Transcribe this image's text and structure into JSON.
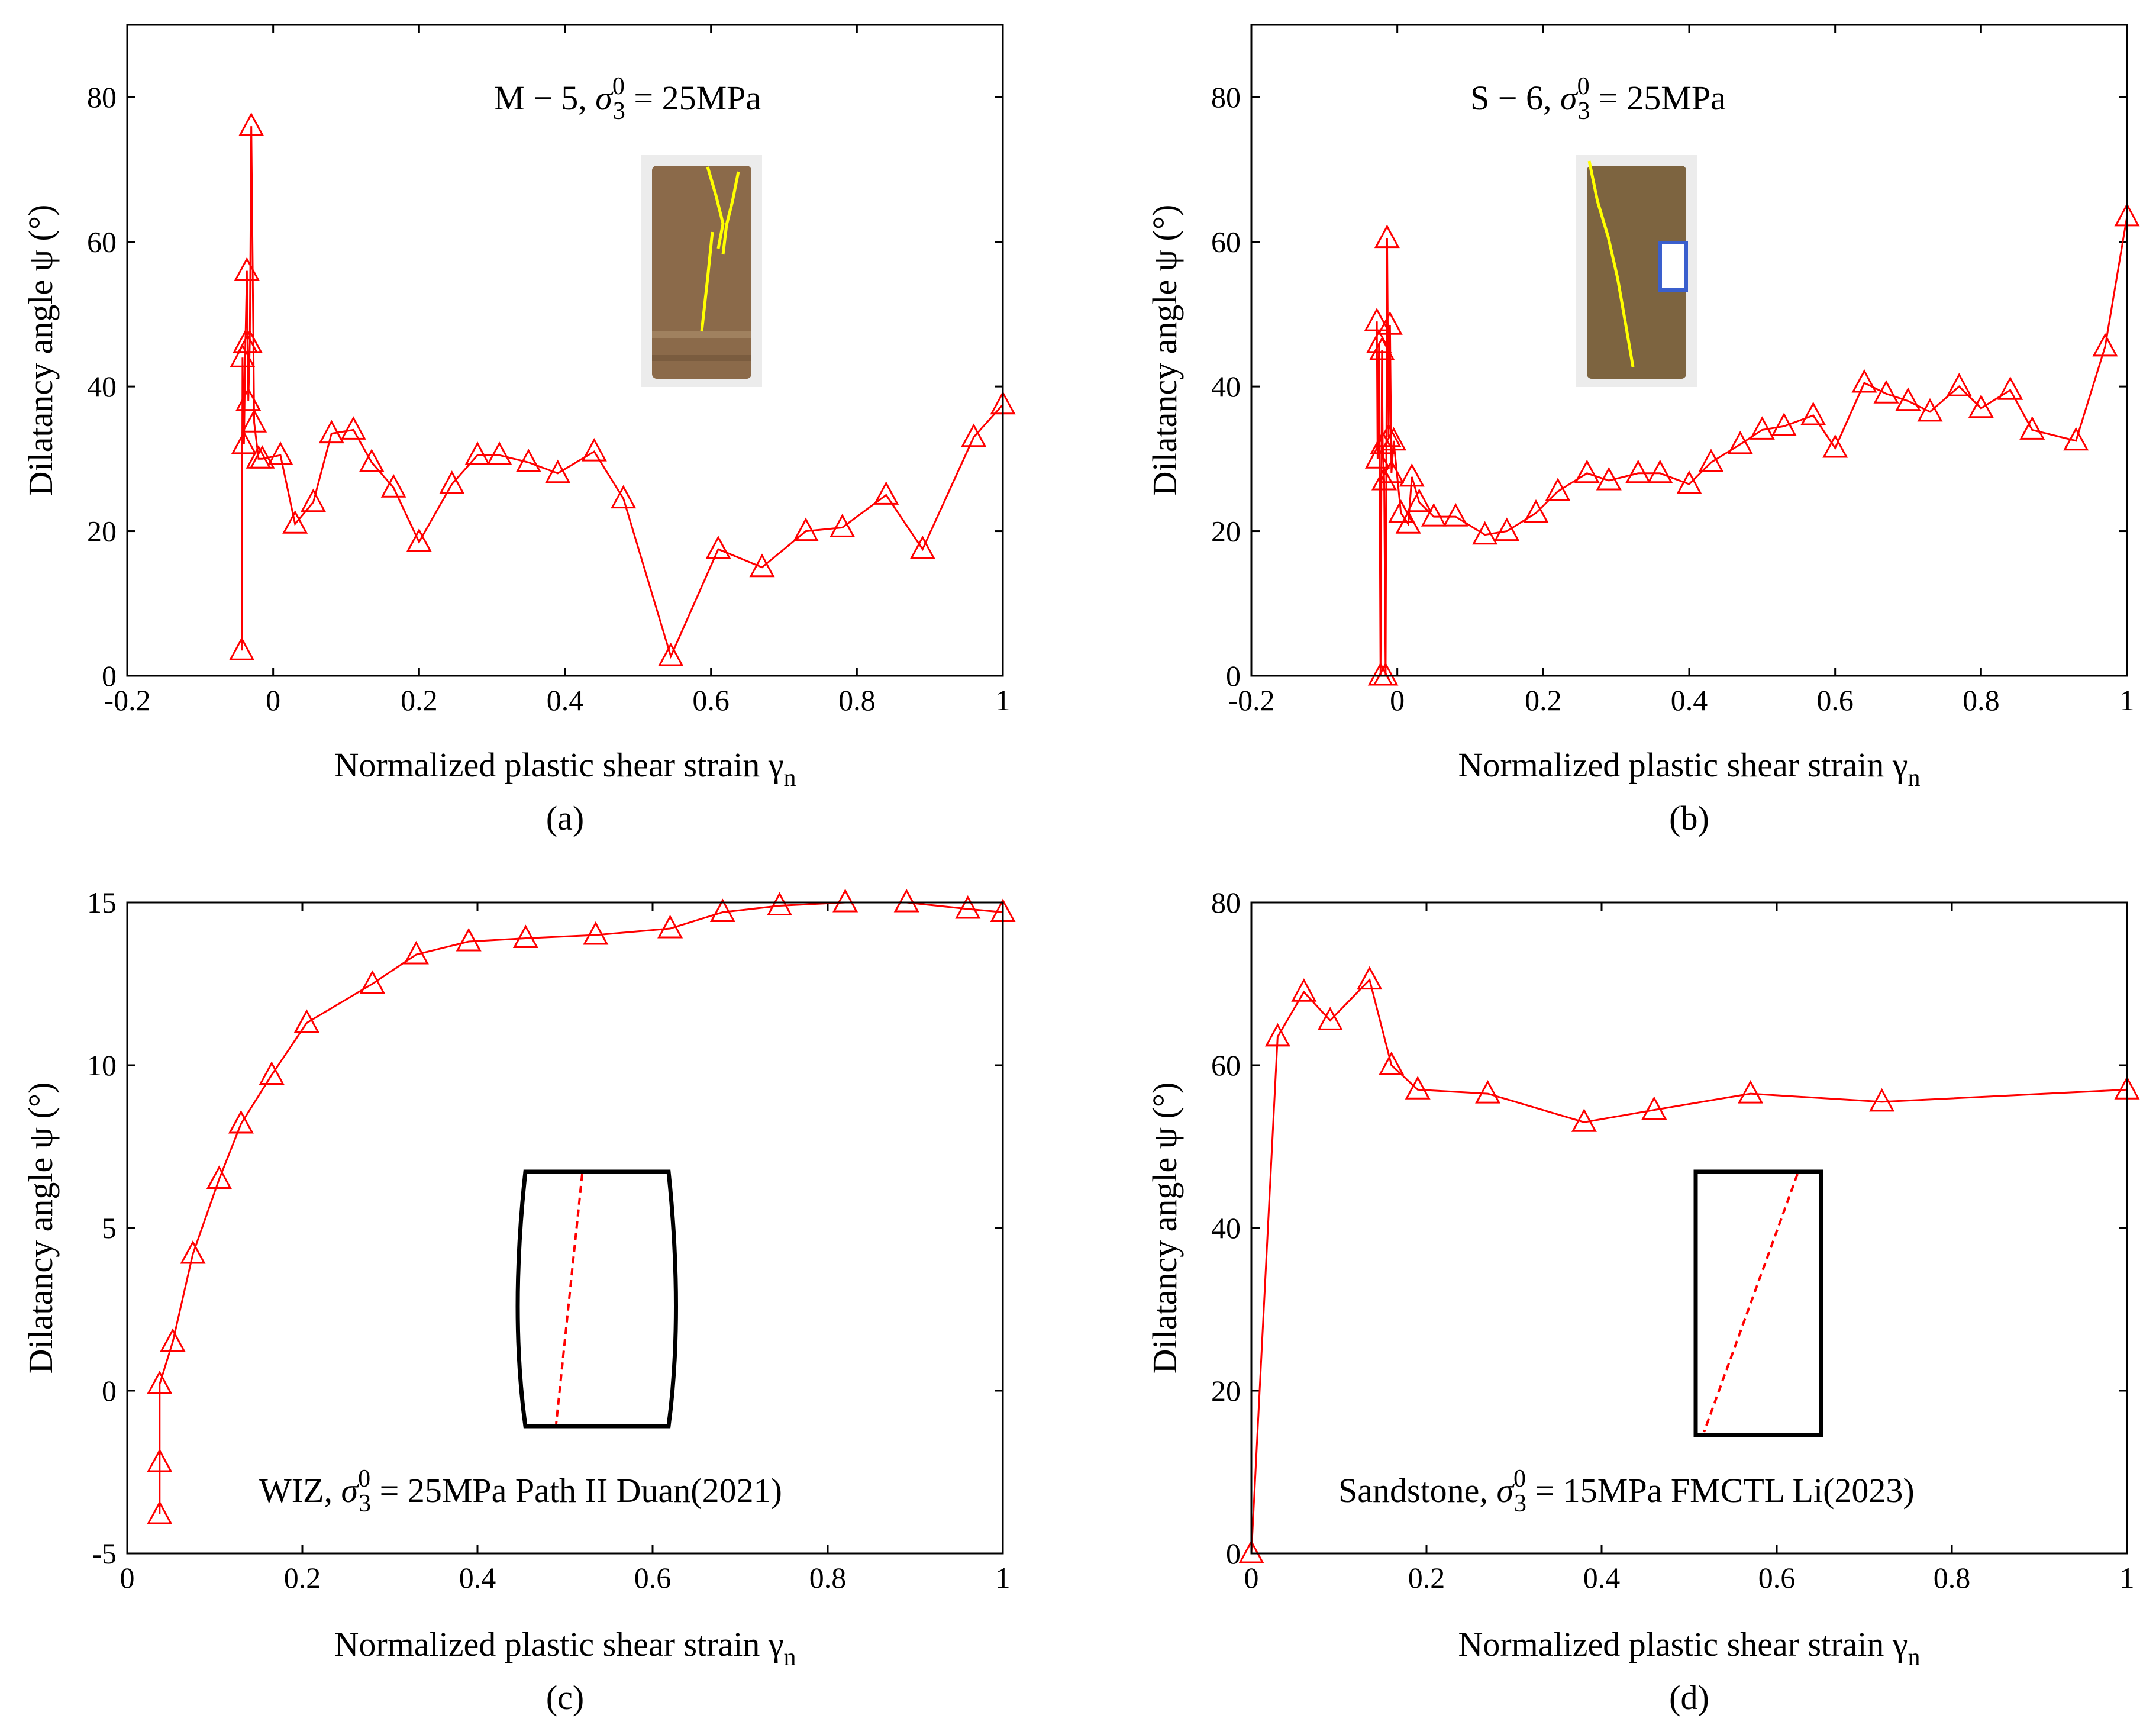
{
  "figure": {
    "colors": {
      "series": "#ff0000",
      "axes": "#000000",
      "crack": "#ffff00",
      "specimen": "#8b6a4a"
    }
  },
  "chart_data": [
    {
      "id": "a",
      "type": "line",
      "caption": "(a)",
      "annotation": "M − 5, σ₃⁰ = 25MPa",
      "annotation_parts": {
        "prefix": "M − 5, ",
        "symbol": "σ",
        "sup": "0",
        "sub": "3",
        "suffix": " = 25MPa"
      },
      "xlabel": "Normalized plastic shear strain γ",
      "xlabel_sub": "n",
      "ylabel": "Dilatancy angle ψ (°)",
      "xlim": [
        -0.2,
        1
      ],
      "ylim": [
        0,
        90
      ],
      "xticks": [
        -0.2,
        0,
        0.2,
        0.4,
        0.6,
        0.8,
        1
      ],
      "xtick_labels": [
        "-0.2",
        "0",
        "0.2",
        "0.4",
        "0.6",
        "0.8",
        "1"
      ],
      "yticks": [
        0,
        20,
        40,
        60,
        80
      ],
      "ytick_labels": [
        "0",
        "20",
        "40",
        "60",
        "80"
      ],
      "inset": "specimen-photo-m5",
      "x": [
        -0.043,
        -0.042,
        -0.04,
        -0.038,
        -0.036,
        -0.034,
        -0.032,
        -0.03,
        -0.026,
        -0.02,
        -0.015,
        0.01,
        0.03,
        0.055,
        0.08,
        0.11,
        0.135,
        0.165,
        0.2,
        0.245,
        0.28,
        0.31,
        0.35,
        0.39,
        0.44,
        0.48,
        0.545,
        0.61,
        0.67,
        0.73,
        0.78,
        0.84,
        0.89,
        0.96,
        1.0
      ],
      "y": [
        3.5,
        44,
        32,
        46,
        56,
        38,
        46,
        76,
        35,
        30,
        30,
        30.5,
        21,
        24,
        33.5,
        34,
        29.5,
        26,
        18.5,
        26.5,
        30.5,
        30.5,
        29.5,
        28,
        31,
        24.5,
        2.7,
        17.5,
        15,
        20,
        20.5,
        25,
        17.5,
        33,
        37.5
      ]
    },
    {
      "id": "b",
      "type": "line",
      "caption": "(b)",
      "annotation": "S − 6, σ₃⁰ = 25MPa",
      "annotation_parts": {
        "prefix": "S − 6, ",
        "symbol": "σ",
        "sup": "0",
        "sub": "3",
        "suffix": " = 25MPa"
      },
      "xlabel": "Normalized plastic shear strain γ",
      "xlabel_sub": "n",
      "ylabel": "Dilatancy angle ψ (°)",
      "xlim": [
        -0.2,
        1
      ],
      "ylim": [
        0,
        90
      ],
      "xticks": [
        -0.2,
        0,
        0.2,
        0.4,
        0.6,
        0.8,
        1
      ],
      "xtick_labels": [
        "-0.2",
        "0",
        "0.2",
        "0.4",
        "0.6",
        "0.8",
        "1"
      ],
      "yticks": [
        0,
        20,
        40,
        60,
        80
      ],
      "ytick_labels": [
        "0",
        "20",
        "40",
        "60",
        "80"
      ],
      "inset": "specimen-photo-s6",
      "x": [
        -0.028,
        -0.027,
        -0.025,
        -0.023,
        -0.021,
        -0.02,
        -0.018,
        -0.016,
        -0.014,
        -0.012,
        -0.01,
        -0.008,
        -0.005,
        0.005,
        0.015,
        0.02,
        0.03,
        0.05,
        0.08,
        0.12,
        0.15,
        0.19,
        0.22,
        0.26,
        0.29,
        0.33,
        0.36,
        0.4,
        0.43,
        0.47,
        0.5,
        0.53,
        0.57,
        0.6,
        0.64,
        0.67,
        0.7,
        0.73,
        0.77,
        0.8,
        0.84,
        0.87,
        0.93,
        0.97,
        1.0
      ],
      "y": [
        49,
        30,
        46,
        0,
        45,
        32,
        27,
        0,
        60.5,
        33,
        48.5,
        28,
        32.5,
        22.5,
        21,
        27.5,
        24,
        22,
        22,
        19.5,
        20,
        22.5,
        25.5,
        28,
        27,
        28,
        28,
        26.5,
        29.5,
        32,
        34,
        34.5,
        36,
        31.5,
        40.5,
        39,
        38,
        36.5,
        40,
        37,
        39.5,
        34,
        32.5,
        45.5,
        63.5
      ]
    },
    {
      "id": "c",
      "type": "line",
      "caption": "(c)",
      "annotation": "WIZ, σ₃⁰ = 25MPa Path II Duan(2021)",
      "annotation_parts": {
        "prefix": "WIZ, ",
        "symbol": "σ",
        "sup": "0",
        "sub": "3",
        "suffix": " = 25MPa Path II Duan(2021)"
      },
      "xlabel": "Normalized plastic shear strain γ",
      "xlabel_sub": "n",
      "ylabel": "Dilatancy angle ψ (°)",
      "xlim": [
        0,
        1
      ],
      "ylim": [
        -5,
        15
      ],
      "xticks": [
        0,
        0.2,
        0.4,
        0.6,
        0.8,
        1
      ],
      "xtick_labels": [
        "0",
        "0.2",
        "0.4",
        "0.6",
        "0.8",
        "1"
      ],
      "yticks": [
        -5,
        0,
        5,
        10,
        15
      ],
      "ytick_labels": [
        "-5",
        "0",
        "5",
        "10",
        "15"
      ],
      "inset": "barrel-specimen-sketch",
      "x": [
        0.037,
        0.037,
        0.037,
        0.052,
        0.075,
        0.105,
        0.13,
        0.165,
        0.205,
        0.28,
        0.33,
        0.39,
        0.455,
        0.535,
        0.62,
        0.68,
        0.745,
        0.82,
        0.89,
        0.96,
        1.0
      ],
      "y": [
        -3.8,
        -2.2,
        0.2,
        1.5,
        4.2,
        6.5,
        8.2,
        9.7,
        11.3,
        12.5,
        13.4,
        13.8,
        13.9,
        14.0,
        14.2,
        14.7,
        14.9,
        15.0,
        15.0,
        14.8,
        14.7
      ]
    },
    {
      "id": "d",
      "type": "line",
      "caption": "(d)",
      "annotation": "Sandstone, σ₃⁰ = 15MPa FMCTL Li(2023)",
      "annotation_parts": {
        "prefix": "Sandstone, ",
        "symbol": "σ",
        "sup": "0",
        "sub": "3",
        "suffix": " = 15MPa FMCTL Li(2023)"
      },
      "xlabel": "Normalized plastic shear strain γ",
      "xlabel_sub": "n",
      "ylabel": "Dilatancy angle ψ (°)",
      "xlim": [
        0,
        1
      ],
      "ylim": [
        0,
        80
      ],
      "xticks": [
        0,
        0.2,
        0.4,
        0.6,
        0.8,
        1
      ],
      "xtick_labels": [
        "0",
        "0.2",
        "0.4",
        "0.6",
        "0.8",
        "1"
      ],
      "yticks": [
        0,
        20,
        40,
        60,
        80
      ],
      "ytick_labels": [
        "0",
        "20",
        "40",
        "60",
        "80"
      ],
      "inset": "rectangular-specimen-sketch",
      "x": [
        0.0,
        0.03,
        0.06,
        0.09,
        0.135,
        0.16,
        0.19,
        0.27,
        0.38,
        0.46,
        0.57,
        0.72,
        1.0
      ],
      "y": [
        0.0,
        63.5,
        69.0,
        65.5,
        70.5,
        60.0,
        57.0,
        56.5,
        53.0,
        54.5,
        56.5,
        55.5,
        57.0
      ]
    }
  ]
}
